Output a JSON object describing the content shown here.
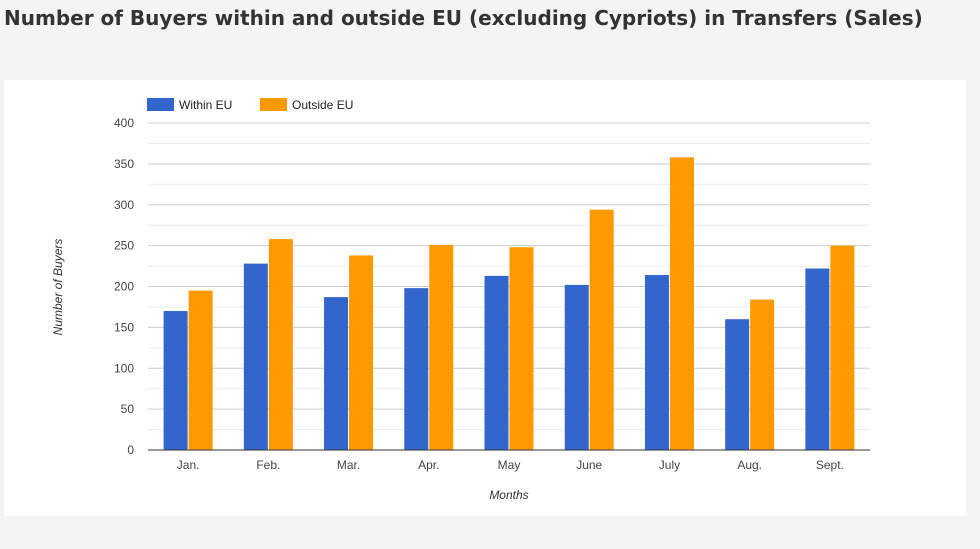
{
  "title": "Number of Buyers within and outside EU (excluding Cypriots) in Transfers (Sales)",
  "chart_data": {
    "type": "bar",
    "title": "Number of Buyers within and outside EU (excluding Cypriots) in Transfers (Sales)",
    "xlabel": "Months",
    "ylabel": "Number of Buyers",
    "ylim": [
      0,
      400
    ],
    "yticks": [
      "0",
      "50",
      "100",
      "150",
      "200",
      "250",
      "300",
      "350",
      "400"
    ],
    "legend_position": "top-left",
    "grid": true,
    "categories": [
      "Jan.",
      "Feb.",
      "Mar.",
      "Apr.",
      "May",
      "June",
      "July",
      "Aug.",
      "Sept."
    ],
    "series": [
      {
        "name": "Within EU",
        "color": "#3366cc",
        "values": [
          170,
          228,
          187,
          198,
          213,
          202,
          214,
          160,
          222
        ]
      },
      {
        "name": "Outside EU",
        "color": "#ff9900",
        "values": [
          195,
          258,
          238,
          251,
          248,
          294,
          358,
          184,
          250
        ]
      }
    ]
  }
}
